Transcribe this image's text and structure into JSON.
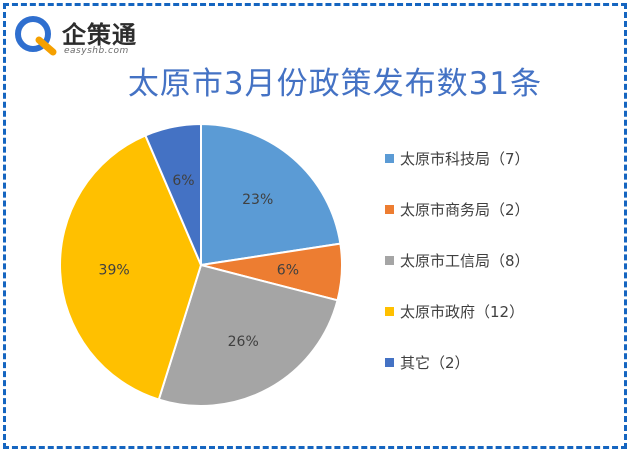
{
  "brand": {
    "name": "企策通",
    "domain": "easyshb.com"
  },
  "colors": {
    "frame": "#1565c0",
    "title": "#4472c4"
  },
  "chart_data": {
    "type": "pie",
    "title": "太原市3月份政策发布数31条",
    "legend_position": "right",
    "slices": [
      {
        "label": "太原市科技局（7）",
        "value": 7,
        "percent_label": "23%",
        "color": "#5b9bd5"
      },
      {
        "label": "太原市商务局（2）",
        "value": 2,
        "percent_label": "6%",
        "color": "#ed7d31"
      },
      {
        "label": "太原市工信局（8）",
        "value": 8,
        "percent_label": "26%",
        "color": "#a5a5a5"
      },
      {
        "label": "太原市政府（12）",
        "value": 12,
        "percent_label": "39%",
        "color": "#ffc000"
      },
      {
        "label": "其它（2）",
        "value": 2,
        "percent_label": "6%",
        "color": "#4472c4"
      }
    ]
  }
}
